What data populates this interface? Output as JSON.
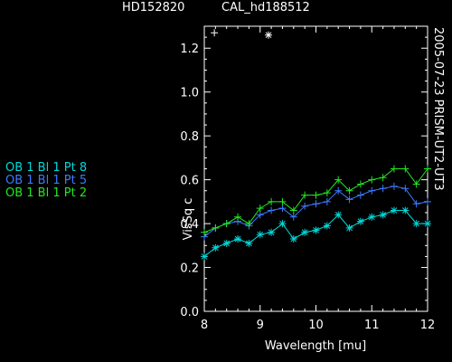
{
  "header": {
    "target": "HD152820",
    "calibrator": "CAL_hd188512"
  },
  "side_label": "2005-07-23 PRISM-UT2-UT3",
  "chart_data": {
    "type": "line",
    "xlabel": "Wavelength [mu]",
    "ylabel": "VisSq c",
    "xlim": [
      8,
      12
    ],
    "ylim": [
      0,
      1.3
    ],
    "xticks": [
      "8",
      "9",
      "10",
      "11",
      "12"
    ],
    "yticks": [
      "0.0",
      "0.2",
      "0.4",
      "0.6",
      "0.8",
      "1.0",
      "1.2"
    ],
    "grid": false,
    "legend_placement": "left-outside",
    "top_markers": [
      {
        "symbol": "+",
        "x": 8.18,
        "y": 1.27,
        "color": "#ffffff"
      },
      {
        "symbol": "*",
        "x": 9.15,
        "y": 1.26,
        "color": "#ffffff"
      }
    ],
    "series": [
      {
        "name": "OB 1 Bl 1 Pt 8",
        "color": "#00d8d8",
        "marker": "asterisk",
        "x": [
          8.0,
          8.2,
          8.4,
          8.6,
          8.8,
          9.0,
          9.2,
          9.4,
          9.6,
          9.8,
          10.0,
          10.2,
          10.4,
          10.6,
          10.8,
          11.0,
          11.2,
          11.4,
          11.6,
          11.8,
          12.0
        ],
        "values": [
          0.25,
          0.29,
          0.31,
          0.33,
          0.31,
          0.35,
          0.36,
          0.4,
          0.33,
          0.36,
          0.37,
          0.39,
          0.44,
          0.38,
          0.41,
          0.43,
          0.44,
          0.46,
          0.46,
          0.4,
          0.4
        ]
      },
      {
        "name": "OB 1 Bl 1 Pt 5",
        "color": "#3d7bff",
        "marker": "plus",
        "x": [
          8.0,
          8.2,
          8.4,
          8.6,
          8.8,
          9.0,
          9.2,
          9.4,
          9.6,
          9.8,
          10.0,
          10.2,
          10.4,
          10.6,
          10.8,
          11.0,
          11.2,
          11.4,
          11.6,
          11.8,
          12.0
        ],
        "values": [
          0.34,
          0.38,
          0.4,
          0.41,
          0.39,
          0.44,
          0.46,
          0.47,
          0.43,
          0.48,
          0.49,
          0.5,
          0.55,
          0.51,
          0.53,
          0.55,
          0.56,
          0.57,
          0.56,
          0.49,
          0.5
        ]
      },
      {
        "name": "OB 1 Bl 1 Pt 2",
        "color": "#22e822",
        "marker": "plus",
        "x": [
          8.0,
          8.2,
          8.4,
          8.6,
          8.8,
          9.0,
          9.2,
          9.4,
          9.6,
          9.8,
          10.0,
          10.2,
          10.4,
          10.6,
          10.8,
          11.0,
          11.2,
          11.4,
          11.6,
          11.8,
          12.0
        ],
        "values": [
          0.36,
          0.38,
          0.4,
          0.43,
          0.4,
          0.47,
          0.5,
          0.5,
          0.46,
          0.53,
          0.53,
          0.54,
          0.6,
          0.55,
          0.58,
          0.6,
          0.61,
          0.65,
          0.65,
          0.58,
          0.65
        ]
      }
    ]
  }
}
